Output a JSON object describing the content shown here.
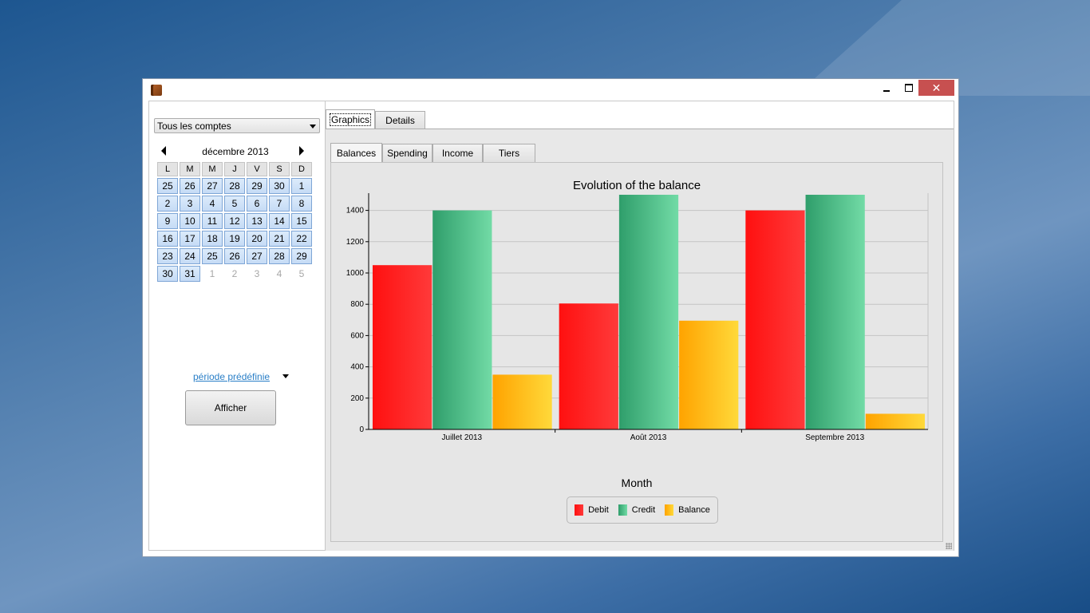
{
  "window": {
    "icon": "wallet-icon",
    "controls": {
      "minimize": "minimize-icon",
      "maximize": "maximize-icon",
      "close": "✕"
    }
  },
  "sidebar": {
    "account_selector": {
      "value": "Tous les comptes"
    },
    "calendar": {
      "month_label": "décembre 2013",
      "weekdays": [
        "L",
        "M",
        "M",
        "J",
        "V",
        "S",
        "D"
      ],
      "weeks": [
        [
          {
            "d": "25",
            "in": true
          },
          {
            "d": "26",
            "in": true
          },
          {
            "d": "27",
            "in": true
          },
          {
            "d": "28",
            "in": true
          },
          {
            "d": "29",
            "in": true
          },
          {
            "d": "30",
            "in": true
          },
          {
            "d": "1",
            "in": true
          }
        ],
        [
          {
            "d": "2",
            "in": true
          },
          {
            "d": "3",
            "in": true
          },
          {
            "d": "4",
            "in": true
          },
          {
            "d": "5",
            "in": true
          },
          {
            "d": "6",
            "in": true
          },
          {
            "d": "7",
            "in": true
          },
          {
            "d": "8",
            "in": true
          }
        ],
        [
          {
            "d": "9",
            "in": true
          },
          {
            "d": "10",
            "in": true
          },
          {
            "d": "11",
            "in": true
          },
          {
            "d": "12",
            "in": true
          },
          {
            "d": "13",
            "in": true
          },
          {
            "d": "14",
            "in": true
          },
          {
            "d": "15",
            "in": true
          }
        ],
        [
          {
            "d": "16",
            "in": true
          },
          {
            "d": "17",
            "in": true
          },
          {
            "d": "18",
            "in": true
          },
          {
            "d": "19",
            "in": true
          },
          {
            "d": "20",
            "in": true
          },
          {
            "d": "21",
            "in": true
          },
          {
            "d": "22",
            "in": true
          }
        ],
        [
          {
            "d": "23",
            "in": true
          },
          {
            "d": "24",
            "in": true
          },
          {
            "d": "25",
            "in": true
          },
          {
            "d": "26",
            "in": true
          },
          {
            "d": "27",
            "in": true
          },
          {
            "d": "28",
            "in": true
          },
          {
            "d": "29",
            "in": true
          }
        ],
        [
          {
            "d": "30",
            "in": true
          },
          {
            "d": "31",
            "in": true
          },
          {
            "d": "1",
            "in": false
          },
          {
            "d": "2",
            "in": false
          },
          {
            "d": "3",
            "in": false
          },
          {
            "d": "4",
            "in": false
          },
          {
            "d": "5",
            "in": false
          }
        ]
      ]
    },
    "period_link": "période prédéfinie",
    "show_button": "Afficher"
  },
  "main": {
    "tabs": [
      {
        "label": "Graphics",
        "active": true
      },
      {
        "label": "Details",
        "active": false
      }
    ],
    "subtabs": [
      {
        "label": "Balances",
        "active": true
      },
      {
        "label": "Spending",
        "active": false
      },
      {
        "label": "Income",
        "active": false
      },
      {
        "label": "Tiers",
        "active": false
      }
    ]
  },
  "chart_data": {
    "type": "bar",
    "title": "Evolution of the balance",
    "xlabel": "Month",
    "ylabel": "",
    "categories": [
      "Juillet 2013",
      "Août 2013",
      "Septembre 2013"
    ],
    "series": [
      {
        "name": "Debit",
        "values": [
          1050,
          805,
          1400
        ],
        "color_from": "#ff1010",
        "color_to": "#ff3a3a"
      },
      {
        "name": "Credit",
        "values": [
          1400,
          1500,
          1500
        ],
        "color_from": "#2f9e6b",
        "color_to": "#72dba6"
      },
      {
        "name": "Balance",
        "values": [
          350,
          695,
          100
        ],
        "color_from": "#ffa300",
        "color_to": "#ffd93a"
      }
    ],
    "ylim": [
      0,
      1500
    ],
    "yticks": [
      0,
      200,
      400,
      600,
      800,
      1000,
      1200,
      1400
    ],
    "grid": true,
    "legend_position": "bottom-center"
  }
}
